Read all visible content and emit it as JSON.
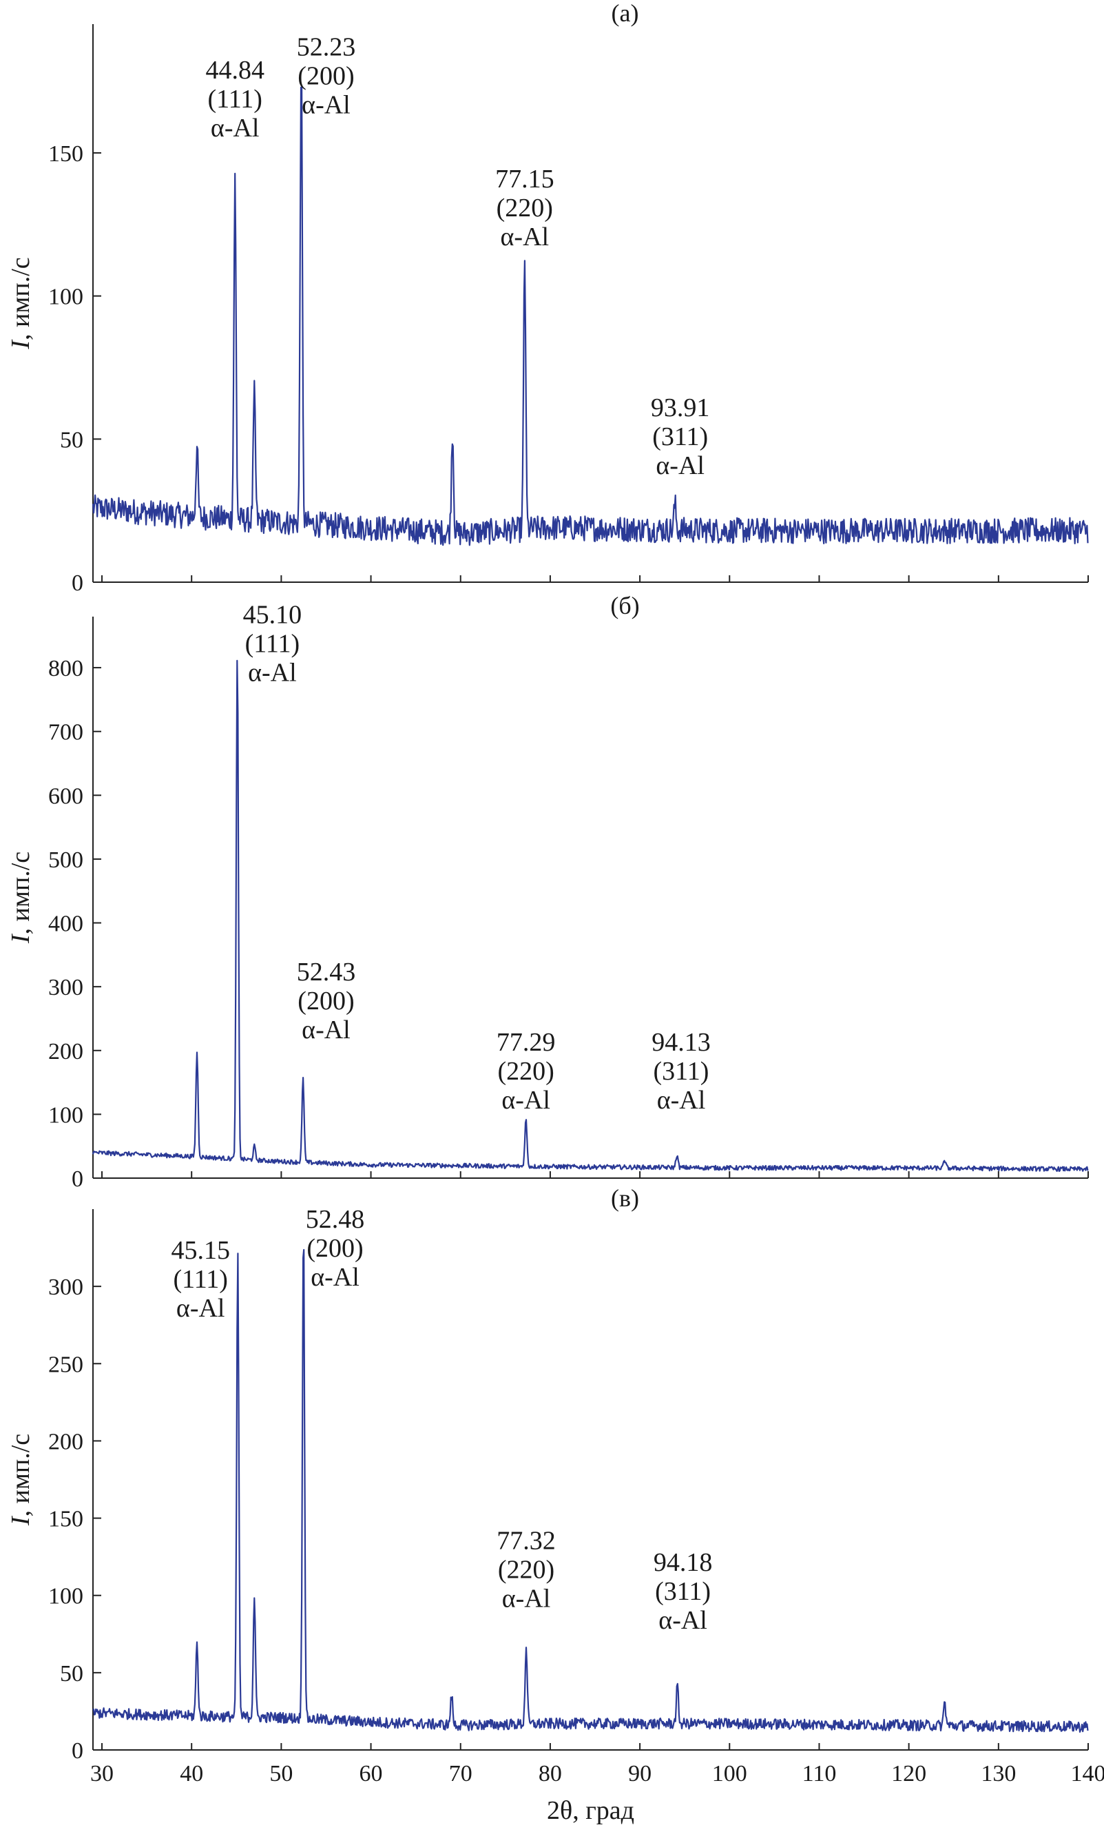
{
  "chart_data": [
    {
      "type": "line",
      "panel_label": "(а)",
      "ylabel_italic": "I",
      "ylabel_rest": ", имп./с",
      "xlabel": "",
      "xlim": [
        29,
        140
      ],
      "ylim": [
        0,
        195
      ],
      "yticks": [
        0,
        50,
        100,
        150
      ],
      "xticks": [],
      "baseline": [
        [
          29,
          26
        ],
        [
          40,
          23
        ],
        [
          50,
          21
        ],
        [
          60,
          19
        ],
        [
          70,
          17
        ],
        [
          80,
          19
        ],
        [
          100,
          18
        ],
        [
          120,
          18
        ],
        [
          140,
          18
        ]
      ],
      "noise": 4.5,
      "peaks": [
        {
          "x": 40.6,
          "y": 47
        },
        {
          "x": 44.84,
          "y": 141
        },
        {
          "x": 47.0,
          "y": 66
        },
        {
          "x": 52.23,
          "y": 182
        },
        {
          "x": 69.1,
          "y": 53
        },
        {
          "x": 77.15,
          "y": 114
        },
        {
          "x": 93.91,
          "y": 27
        }
      ],
      "annotations": [
        {
          "lines": [
            "44.84",
            "(111)",
            "α-Al"
          ],
          "x": 44.84,
          "y": 176
        },
        {
          "lines": [
            "52.23",
            "(200)",
            "α-Al"
          ],
          "x": 55.0,
          "y": 184
        },
        {
          "lines": [
            "77.15",
            "(220)",
            "α-Al"
          ],
          "x": 77.15,
          "y": 138
        },
        {
          "lines": [
            "93.91",
            "(311)",
            "α-Al"
          ],
          "x": 94.5,
          "y": 58
        }
      ]
    },
    {
      "type": "line",
      "panel_label": "(б)",
      "ylabel_italic": "I",
      "ylabel_rest": ", имп./с",
      "xlabel": "",
      "xlim": [
        29,
        140
      ],
      "ylim": [
        0,
        880
      ],
      "yticks": [
        0,
        100,
        200,
        300,
        400,
        500,
        600,
        700,
        800
      ],
      "xticks": [],
      "baseline": [
        [
          29,
          40
        ],
        [
          40,
          34
        ],
        [
          50,
          26
        ],
        [
          60,
          21
        ],
        [
          80,
          18
        ],
        [
          100,
          16
        ],
        [
          120,
          16
        ],
        [
          140,
          14
        ]
      ],
      "noise": 3.5,
      "peaks": [
        {
          "x": 40.6,
          "y": 198
        },
        {
          "x": 45.1,
          "y": 820
        },
        {
          "x": 47.0,
          "y": 50
        },
        {
          "x": 52.43,
          "y": 155
        },
        {
          "x": 77.29,
          "y": 92
        },
        {
          "x": 94.13,
          "y": 36
        },
        {
          "x": 124.0,
          "y": 28
        }
      ],
      "annotations": [
        {
          "lines": [
            "45.10",
            "(111)",
            "α-Al"
          ],
          "x": 49.0,
          "y": 870
        },
        {
          "lines": [
            "52.43",
            "(200)",
            "α-Al"
          ],
          "x": 55.0,
          "y": 310
        },
        {
          "lines": [
            "77.29",
            "(220)",
            "α-Al"
          ],
          "x": 77.29,
          "y": 200
        },
        {
          "lines": [
            "94.13",
            "(311)",
            "α-Al"
          ],
          "x": 94.6,
          "y": 200
        }
      ]
    },
    {
      "type": "line",
      "panel_label": "(в)",
      "ylabel_italic": "I",
      "ylabel_rest": ", имп./с",
      "xlabel_italic": "",
      "xlabel": "2θ, град",
      "xlim": [
        29,
        140
      ],
      "ylim": [
        0,
        350
      ],
      "yticks": [
        0,
        50,
        100,
        150,
        200,
        250,
        300
      ],
      "xticks": [
        30,
        40,
        50,
        60,
        70,
        80,
        90,
        100,
        110,
        120,
        130,
        140
      ],
      "baseline": [
        [
          29,
          24
        ],
        [
          40,
          22
        ],
        [
          50,
          21
        ],
        [
          60,
          18
        ],
        [
          70,
          16
        ],
        [
          80,
          17
        ],
        [
          100,
          17
        ],
        [
          120,
          16
        ],
        [
          140,
          15
        ]
      ],
      "noise": 3.5,
      "peaks": [
        {
          "x": 40.6,
          "y": 69
        },
        {
          "x": 45.15,
          "y": 319
        },
        {
          "x": 47.0,
          "y": 100
        },
        {
          "x": 52.48,
          "y": 339
        },
        {
          "x": 69.0,
          "y": 35
        },
        {
          "x": 77.32,
          "y": 67
        },
        {
          "x": 94.18,
          "y": 41
        },
        {
          "x": 124.0,
          "y": 31
        }
      ],
      "annotations": [
        {
          "lines": [
            "45.15",
            "(111)",
            "α-Al"
          ],
          "x": 41.0,
          "y": 318
        },
        {
          "lines": [
            "52.48",
            "(200)",
            "α-Al"
          ],
          "x": 56.0,
          "y": 338
        },
        {
          "lines": [
            "77.32",
            "(220)",
            "α-Al"
          ],
          "x": 77.32,
          "y": 130
        },
        {
          "lines": [
            "94.18",
            "(311)",
            "α-Al"
          ],
          "x": 94.8,
          "y": 116
        }
      ]
    }
  ]
}
